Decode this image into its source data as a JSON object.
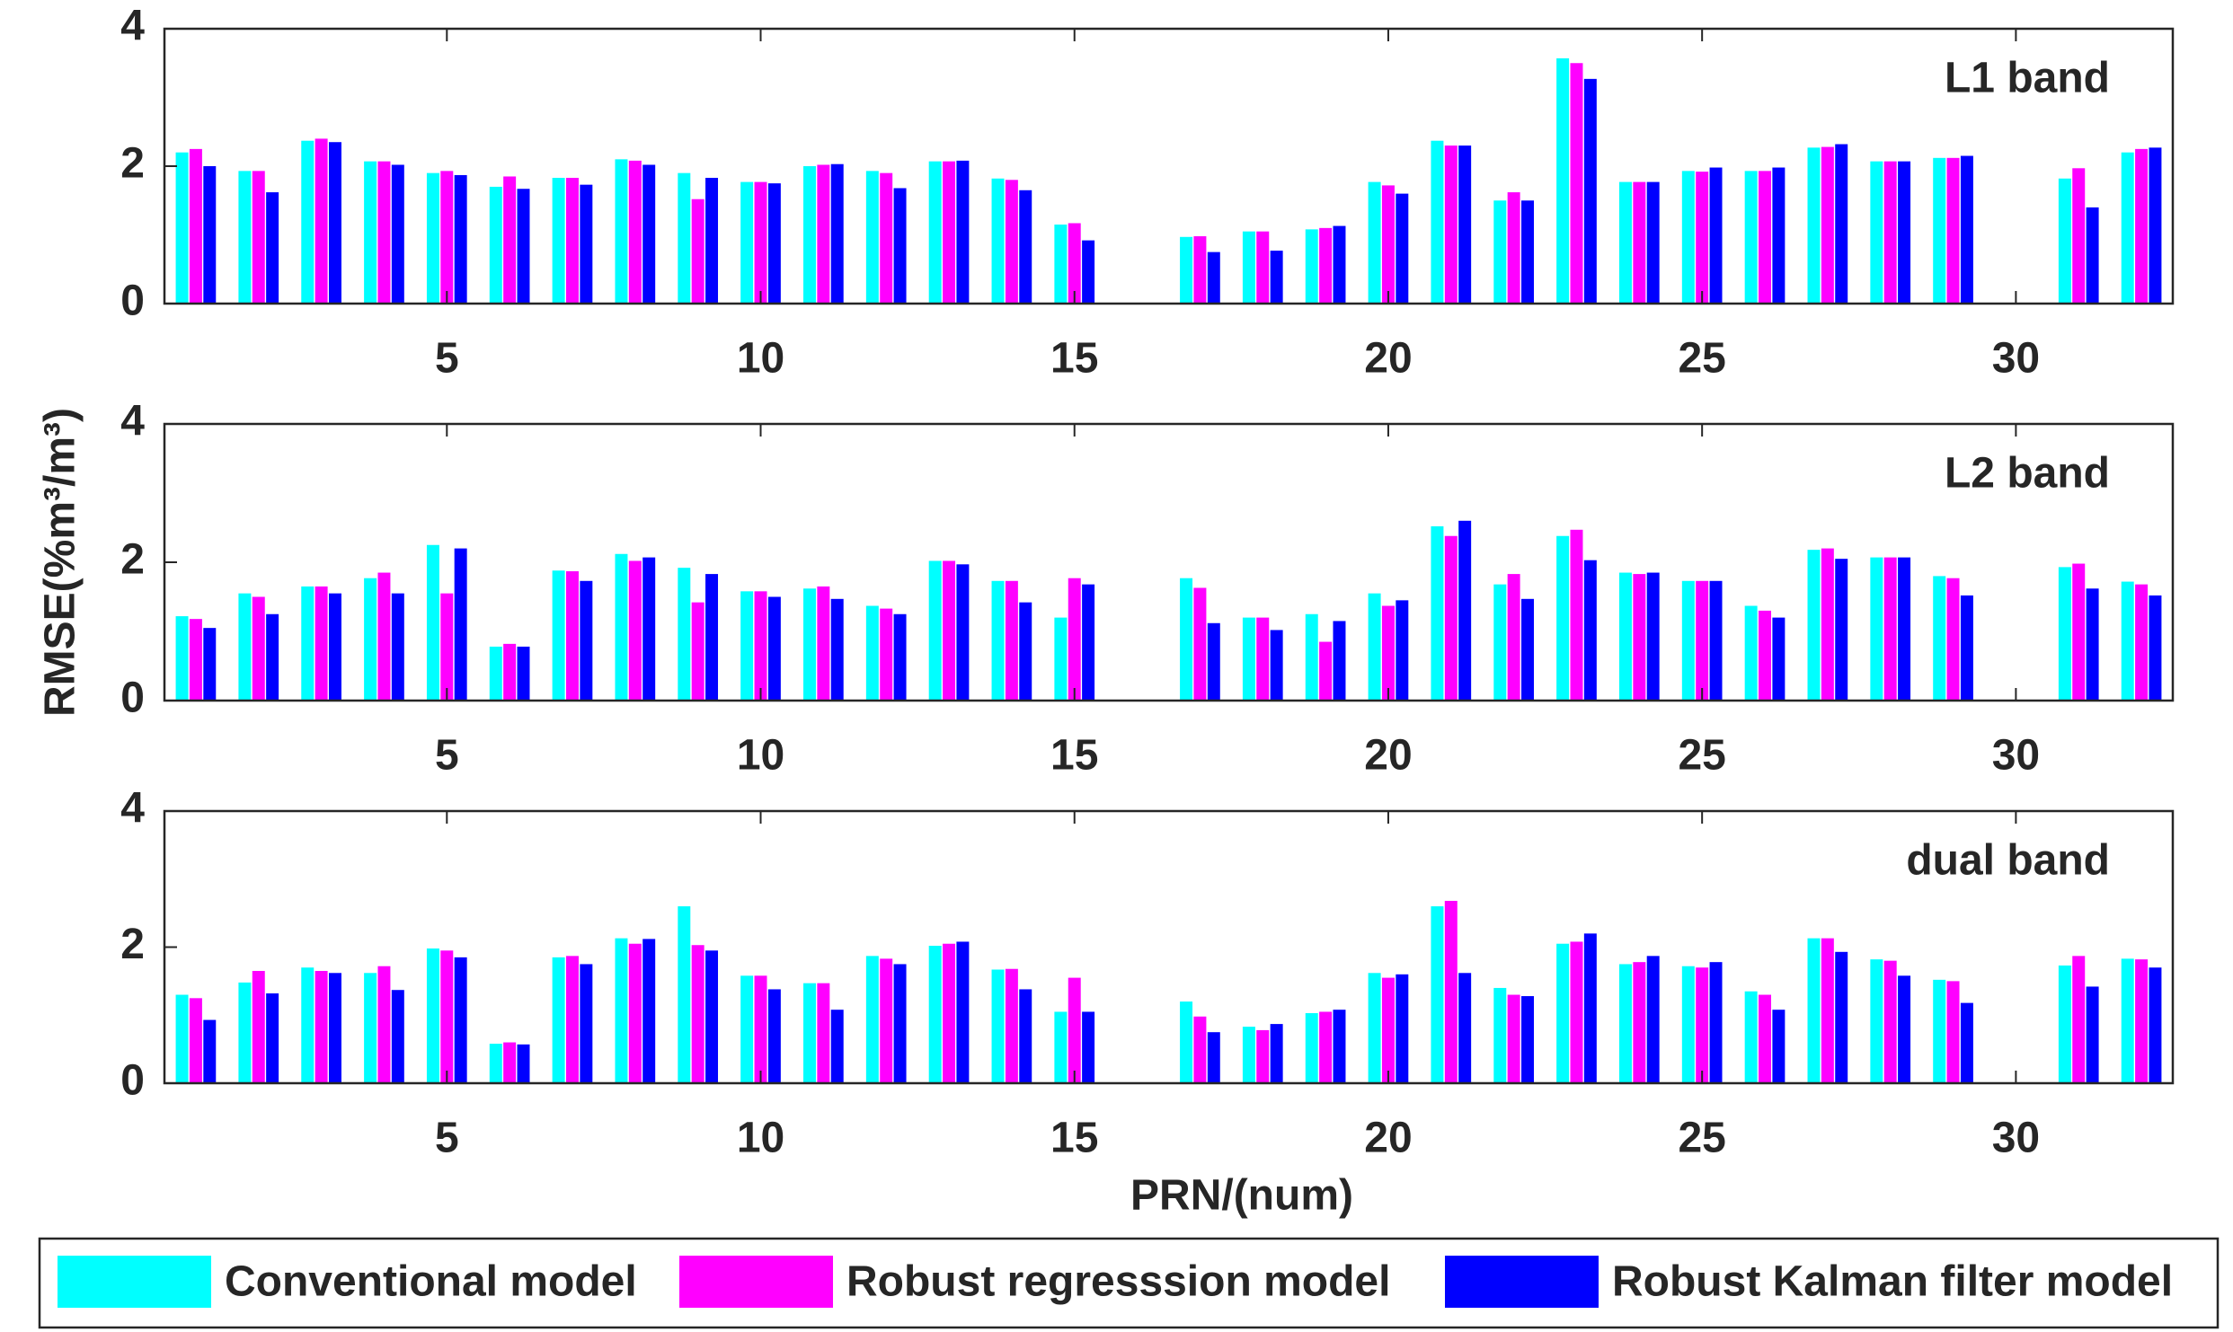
{
  "chart_data": [
    {
      "type": "bar",
      "annotation": "L1 band",
      "x": [
        1,
        2,
        3,
        4,
        5,
        6,
        7,
        8,
        9,
        10,
        11,
        12,
        13,
        14,
        15,
        16,
        17,
        18,
        19,
        20,
        21,
        22,
        23,
        24,
        25,
        26,
        27,
        28,
        29,
        30,
        31,
        32
      ],
      "series": [
        {
          "name": "Conventional model",
          "color": "#00ffff",
          "values": [
            2.2,
            1.93,
            2.37,
            2.07,
            1.9,
            1.7,
            1.83,
            2.1,
            1.9,
            1.77,
            2.0,
            1.93,
            2.07,
            1.82,
            1.15,
            null,
            0.97,
            1.05,
            1.08,
            1.77,
            2.37,
            1.5,
            3.57,
            1.77,
            1.93,
            1.93,
            2.27,
            2.07,
            2.12,
            null,
            1.82,
            2.2
          ]
        },
        {
          "name": "Robust regresssion model",
          "color": "#ff00ff",
          "values": [
            2.25,
            1.93,
            2.4,
            2.07,
            1.93,
            1.85,
            1.83,
            2.08,
            1.52,
            1.77,
            2.02,
            1.9,
            2.07,
            1.8,
            1.17,
            null,
            0.98,
            1.05,
            1.1,
            1.72,
            2.3,
            1.62,
            3.5,
            1.77,
            1.92,
            1.93,
            2.28,
            2.07,
            2.12,
            null,
            1.97,
            2.25
          ]
        },
        {
          "name": "Robust Kalman filter model",
          "color": "#0000ff",
          "values": [
            2.0,
            1.62,
            2.35,
            2.02,
            1.87,
            1.67,
            1.73,
            2.02,
            1.83,
            1.75,
            2.03,
            1.68,
            2.08,
            1.65,
            0.92,
            null,
            0.75,
            0.77,
            1.13,
            1.6,
            2.3,
            1.5,
            3.27,
            1.77,
            1.98,
            1.98,
            2.32,
            2.07,
            2.15,
            null,
            1.4,
            2.27
          ]
        }
      ],
      "xlim": [
        0.5,
        32.5
      ],
      "xticks": [
        5,
        10,
        15,
        20,
        25,
        30
      ],
      "ylim": [
        0,
        4
      ],
      "yticks": [
        0,
        2,
        4
      ],
      "legend": "bottom"
    },
    {
      "type": "bar",
      "annotation": "L2 band",
      "ylabel": "RMSE(%m³/m³)",
      "x": [
        1,
        2,
        3,
        4,
        5,
        6,
        7,
        8,
        9,
        10,
        11,
        12,
        13,
        14,
        15,
        16,
        17,
        18,
        19,
        20,
        21,
        22,
        23,
        24,
        25,
        26,
        27,
        28,
        29,
        30,
        31,
        32
      ],
      "series": [
        {
          "name": "Conventional model",
          "color": "#00ffff",
          "values": [
            1.22,
            1.55,
            1.65,
            1.77,
            2.25,
            0.78,
            1.88,
            2.12,
            1.92,
            1.58,
            1.62,
            1.37,
            2.02,
            1.73,
            1.2,
            null,
            1.77,
            1.2,
            1.25,
            1.55,
            2.52,
            1.68,
            2.38,
            1.85,
            1.73,
            1.37,
            2.18,
            2.07,
            1.8,
            null,
            1.93,
            1.72
          ]
        },
        {
          "name": "Robust regresssion model",
          "color": "#ff00ff",
          "values": [
            1.18,
            1.5,
            1.65,
            1.85,
            1.55,
            0.82,
            1.87,
            2.02,
            1.42,
            1.58,
            1.65,
            1.33,
            2.02,
            1.73,
            1.77,
            null,
            1.63,
            1.2,
            0.85,
            1.37,
            2.38,
            1.83,
            2.47,
            1.83,
            1.73,
            1.3,
            2.2,
            2.07,
            1.77,
            null,
            1.98,
            1.68
          ]
        },
        {
          "name": "Robust Kalman filter model",
          "color": "#0000ff",
          "values": [
            1.05,
            1.25,
            1.55,
            1.55,
            2.2,
            0.78,
            1.73,
            2.07,
            1.83,
            1.5,
            1.47,
            1.25,
            1.97,
            1.42,
            1.68,
            null,
            1.12,
            1.02,
            1.15,
            1.45,
            2.6,
            1.47,
            2.03,
            1.85,
            1.73,
            1.2,
            2.05,
            2.07,
            1.52,
            null,
            1.62,
            1.52
          ]
        }
      ],
      "xlim": [
        0.5,
        32.5
      ],
      "xticks": [
        5,
        10,
        15,
        20,
        25,
        30
      ],
      "ylim": [
        0,
        4
      ],
      "yticks": [
        0,
        2,
        4
      ]
    },
    {
      "type": "bar",
      "annotation": "dual band",
      "xlabel": "PRN/(num)",
      "x": [
        1,
        2,
        3,
        4,
        5,
        6,
        7,
        8,
        9,
        10,
        11,
        12,
        13,
        14,
        15,
        16,
        17,
        18,
        19,
        20,
        21,
        22,
        23,
        24,
        25,
        26,
        27,
        28,
        29,
        30,
        31,
        32
      ],
      "series": [
        {
          "name": "Conventional model",
          "color": "#00ffff",
          "values": [
            1.3,
            1.48,
            1.7,
            1.62,
            1.98,
            0.58,
            1.85,
            2.13,
            2.6,
            1.58,
            1.47,
            1.87,
            2.02,
            1.67,
            1.05,
            null,
            1.2,
            0.83,
            1.03,
            1.62,
            2.6,
            1.4,
            2.05,
            1.75,
            1.72,
            1.35,
            2.13,
            1.82,
            1.52,
            null,
            1.73,
            1.83
          ]
        },
        {
          "name": "Robust regresssion model",
          "color": "#ff00ff",
          "values": [
            1.25,
            1.65,
            1.65,
            1.72,
            1.95,
            0.6,
            1.87,
            2.05,
            2.03,
            1.58,
            1.47,
            1.83,
            2.05,
            1.68,
            1.55,
            null,
            0.98,
            0.78,
            1.05,
            1.55,
            2.68,
            1.3,
            2.08,
            1.78,
            1.7,
            1.3,
            2.13,
            1.8,
            1.5,
            null,
            1.87,
            1.82
          ]
        },
        {
          "name": "Robust Kalman filter model",
          "color": "#0000ff",
          "values": [
            0.93,
            1.32,
            1.62,
            1.37,
            1.85,
            0.57,
            1.75,
            2.12,
            1.95,
            1.38,
            1.08,
            1.75,
            2.08,
            1.38,
            1.05,
            null,
            0.75,
            0.87,
            1.08,
            1.6,
            1.62,
            1.28,
            2.2,
            1.87,
            1.78,
            1.08,
            1.93,
            1.58,
            1.18,
            null,
            1.42,
            1.7
          ]
        }
      ],
      "xlim": [
        0.5,
        32.5
      ],
      "xticks": [
        5,
        10,
        15,
        20,
        25,
        30
      ],
      "ylim": [
        0,
        4
      ],
      "yticks": [
        0,
        2,
        4
      ]
    }
  ]
}
